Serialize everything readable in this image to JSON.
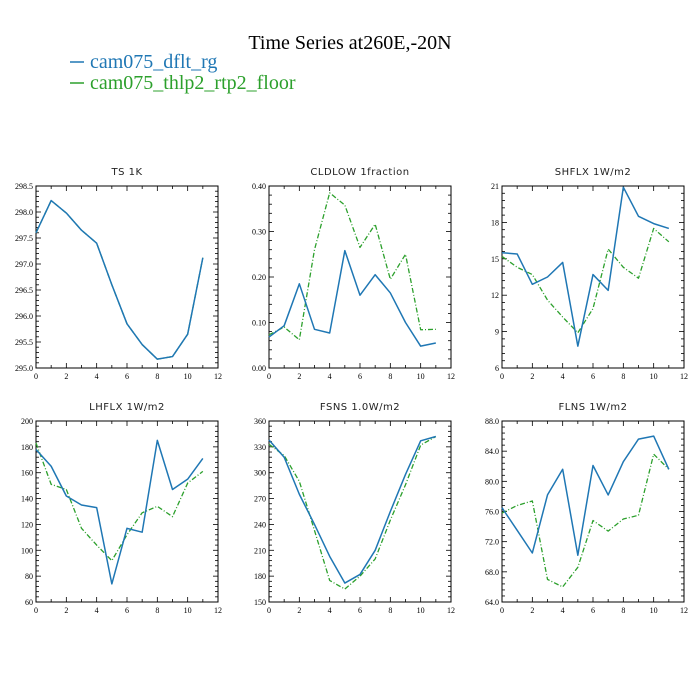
{
  "title": "Time Series at260E,-20N",
  "colors": {
    "blue": "#1f77b4",
    "green": "#2ca02c"
  },
  "legend": [
    {
      "label": "cam075_dflt_rg",
      "color": "#1f77b4",
      "dash": false
    },
    {
      "label": "cam075_thlp2_rtp2_floor",
      "color": "#2ca02c",
      "dash": true
    }
  ],
  "chart_data": [
    {
      "type": "line",
      "title": "TS   1K",
      "x": [
        0,
        1,
        2,
        3,
        4,
        5,
        6,
        7,
        8,
        9,
        10,
        11
      ],
      "xlim": [
        0,
        12
      ],
      "xticks": [
        "0",
        "2",
        "4",
        "6",
        "8",
        "10",
        "12"
      ],
      "ylim": [
        295.0,
        298.5
      ],
      "yticks": [
        "295.0",
        "295.5",
        "296.0",
        "296.5",
        "297.0",
        "297.5",
        "298.0",
        "298.5"
      ],
      "series": [
        {
          "name": "cam075_dflt_rg",
          "values": [
            297.6,
            298.22,
            297.98,
            297.65,
            297.4,
            296.6,
            295.85,
            295.45,
            295.17,
            295.22,
            295.65,
            297.12
          ]
        },
        {
          "name": "cam075_thlp2_rtp2_floor",
          "values": [
            297.6,
            298.22,
            297.98,
            297.65,
            297.4,
            296.6,
            295.85,
            295.45,
            295.17,
            295.22,
            295.65,
            297.12
          ]
        }
      ]
    },
    {
      "type": "line",
      "title": "CLDLOW   1fraction",
      "x": [
        0,
        1,
        2,
        3,
        4,
        5,
        6,
        7,
        8,
        9,
        10,
        11
      ],
      "xlim": [
        0,
        12
      ],
      "xticks": [
        "0",
        "2",
        "4",
        "6",
        "8",
        "10",
        "12"
      ],
      "ylim": [
        0.0,
        0.4
      ],
      "yticks": [
        "0.00",
        "0.10",
        "0.20",
        "0.30",
        "0.40"
      ],
      "series": [
        {
          "name": "cam075_dflt_rg",
          "values": [
            0.068,
            0.093,
            0.185,
            0.085,
            0.077,
            0.258,
            0.16,
            0.205,
            0.165,
            0.1,
            0.048,
            0.055
          ]
        },
        {
          "name": "cam075_thlp2_rtp2_floor",
          "values": [
            0.073,
            0.09,
            0.062,
            0.26,
            0.385,
            0.358,
            0.265,
            0.316,
            0.195,
            0.25,
            0.084,
            0.085
          ]
        }
      ]
    },
    {
      "type": "line",
      "title": "SHFLX   1W/m2",
      "x": [
        0,
        1,
        2,
        3,
        4,
        5,
        6,
        7,
        8,
        9,
        10,
        11
      ],
      "xlim": [
        0,
        12
      ],
      "xticks": [
        "0",
        "2",
        "4",
        "6",
        "8",
        "10",
        "12"
      ],
      "ylim": [
        6,
        21
      ],
      "yticks": [
        "6",
        "9",
        "12",
        "15",
        "18",
        "21"
      ],
      "series": [
        {
          "name": "cam075_dflt_rg",
          "values": [
            15.5,
            15.4,
            12.9,
            13.5,
            14.7,
            7.8,
            13.7,
            12.4,
            20.9,
            18.5,
            17.9,
            17.5
          ]
        },
        {
          "name": "cam075_thlp2_rtp2_floor",
          "values": [
            15.2,
            14.3,
            13.7,
            11.6,
            10.2,
            8.9,
            10.9,
            15.8,
            14.3,
            13.4,
            17.5,
            16.4
          ]
        }
      ]
    },
    {
      "type": "line",
      "title": "LHFLX   1W/m2",
      "x": [
        0,
        1,
        2,
        3,
        4,
        5,
        6,
        7,
        8,
        9,
        10,
        11
      ],
      "xlim": [
        0,
        12
      ],
      "xticks": [
        "0",
        "2",
        "4",
        "6",
        "8",
        "10",
        "12"
      ],
      "ylim": [
        60,
        200
      ],
      "yticks": [
        "60",
        "80",
        "100",
        "120",
        "140",
        "160",
        "180",
        "200"
      ],
      "series": [
        {
          "name": "cam075_dflt_rg",
          "values": [
            178,
            165,
            142,
            135,
            133,
            74,
            117,
            114,
            185,
            147,
            155,
            171
          ]
        },
        {
          "name": "cam075_thlp2_rtp2_floor",
          "values": [
            183,
            151,
            147,
            117,
            104,
            92,
            112,
            129,
            134,
            126,
            152,
            161
          ]
        }
      ]
    },
    {
      "type": "line",
      "title": "FSNS   1.0W/m2",
      "x": [
        0,
        1,
        2,
        3,
        4,
        5,
        6,
        7,
        8,
        9,
        10,
        11
      ],
      "xlim": [
        0,
        12
      ],
      "xticks": [
        "0",
        "2",
        "4",
        "6",
        "8",
        "10",
        "12"
      ],
      "ylim": [
        150,
        360
      ],
      "yticks": [
        "150",
        "180",
        "210",
        "240",
        "270",
        "300",
        "330",
        "360"
      ],
      "series": [
        {
          "name": "cam075_dflt_rg",
          "values": [
            338,
            318,
            275,
            240,
            203,
            172,
            182,
            210,
            255,
            298,
            337,
            342
          ]
        },
        {
          "name": "cam075_thlp2_rtp2_floor",
          "values": [
            333,
            320,
            290,
            233,
            175,
            165,
            180,
            200,
            245,
            286,
            332,
            342
          ]
        }
      ]
    },
    {
      "type": "line",
      "title": "FLNS   1W/m2",
      "x": [
        0,
        1,
        2,
        3,
        4,
        5,
        6,
        7,
        8,
        9,
        10,
        11
      ],
      "xlim": [
        0,
        12
      ],
      "xticks": [
        "0",
        "2",
        "4",
        "6",
        "8",
        "10",
        "12"
      ],
      "ylim": [
        64,
        88
      ],
      "yticks": [
        "64.0",
        "68.0",
        "72.0",
        "76.0",
        "80.0",
        "84.0",
        "88.0"
      ],
      "series": [
        {
          "name": "cam075_dflt_rg",
          "values": [
            76.5,
            73.5,
            70.5,
            78.2,
            81.6,
            70.2,
            82.1,
            78.2,
            82.6,
            85.6,
            86.0,
            81.6
          ]
        },
        {
          "name": "cam075_thlp2_rtp2_floor",
          "values": [
            75.8,
            76.8,
            77.4,
            67.0,
            66.0,
            68.6,
            74.8,
            73.4,
            75.0,
            75.5,
            83.6,
            81.6
          ]
        }
      ]
    }
  ]
}
